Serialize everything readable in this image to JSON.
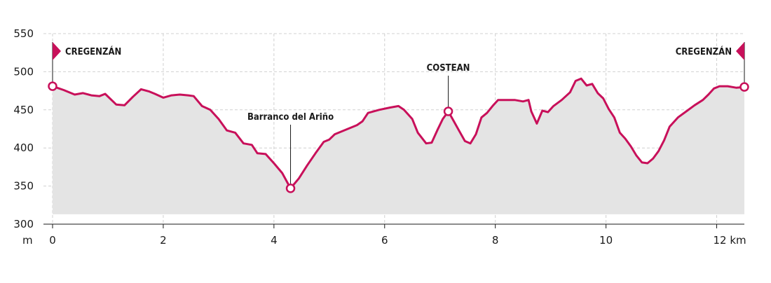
{
  "chart_data": {
    "type": "area",
    "xlabel": "km",
    "ylabel": "m",
    "xlim": [
      0,
      12.5
    ],
    "ylim": [
      300,
      550
    ],
    "x_ticks": [
      0,
      2,
      4,
      6,
      8,
      10,
      12
    ],
    "y_ticks": [
      300,
      350,
      400,
      450,
      500,
      550
    ],
    "x_tick_labels": [
      "0",
      "2",
      "4",
      "6",
      "8",
      "10",
      "12 km"
    ],
    "y_tick_labels": [
      "300",
      "350",
      "400",
      "450",
      "500",
      "550"
    ],
    "grid": true,
    "area_floor": 313,
    "colors": {
      "line": "#c8105a",
      "area": "#e4e4e4",
      "grid": "#d0d0d0",
      "marker_fill": "#ffffff"
    },
    "series": [
      {
        "x": [
          0,
          0.2,
          0.4,
          0.55,
          0.7,
          0.85,
          0.95,
          1.15,
          1.3,
          1.45,
          1.6,
          1.75,
          1.85,
          2.0,
          2.15,
          2.3,
          2.45,
          2.55,
          2.7,
          2.85,
          3.0,
          3.15,
          3.3,
          3.45,
          3.6,
          3.7,
          3.85,
          4.0,
          4.15,
          4.3,
          4.45,
          4.6,
          4.75,
          4.9,
          5.0,
          5.1,
          5.3,
          5.5,
          5.6,
          5.7,
          5.9,
          6.1,
          6.25,
          6.35,
          6.5,
          6.6,
          6.75,
          6.85,
          6.95,
          7.05,
          7.15,
          7.25,
          7.35,
          7.45,
          7.55,
          7.65,
          7.75,
          7.85,
          7.95,
          8.05,
          8.2,
          8.35,
          8.5,
          8.6,
          8.65,
          8.75,
          8.85,
          8.95,
          9.05,
          9.2,
          9.35,
          9.45,
          9.55,
          9.65,
          9.75,
          9.85,
          9.95,
          10.05,
          10.15,
          10.25,
          10.35,
          10.45,
          10.55,
          10.65,
          10.75,
          10.85,
          10.95,
          11.05,
          11.15,
          11.3,
          11.45,
          11.6,
          11.75,
          11.85,
          11.95,
          12.05,
          12.2,
          12.35,
          12.5
        ],
        "y": [
          481,
          476,
          470,
          472,
          469,
          468,
          471,
          457,
          456,
          467,
          477,
          474,
          471,
          466,
          469,
          470,
          469,
          468,
          455,
          450,
          438,
          423,
          420,
          406,
          404,
          393,
          392,
          380,
          367,
          347,
          360,
          377,
          393,
          408,
          411,
          418,
          424,
          430,
          435,
          446,
          450,
          453,
          455,
          450,
          438,
          420,
          406,
          407,
          423,
          438,
          448,
          435,
          422,
          409,
          406,
          418,
          440,
          446,
          455,
          463,
          463,
          463,
          461,
          463,
          448,
          432,
          449,
          447,
          455,
          463,
          473,
          488,
          491,
          482,
          484,
          472,
          465,
          451,
          440,
          420,
          412,
          402,
          390,
          381,
          380,
          386,
          396,
          410,
          428,
          440,
          448,
          456,
          463,
          470,
          478,
          481,
          481,
          479,
          480
        ]
      }
    ],
    "markers": [
      {
        "x": 0,
        "y": 481,
        "label": "CREGENZÁN",
        "flag": "right"
      },
      {
        "x": 4.3,
        "y": 347,
        "label": "Barranco del Ariño",
        "flag": "none"
      },
      {
        "x": 7.15,
        "y": 448,
        "label": "COSTEAN",
        "flag": "none"
      },
      {
        "x": 12.5,
        "y": 480,
        "label": "CREGENZÁN",
        "flag": "left"
      }
    ]
  }
}
